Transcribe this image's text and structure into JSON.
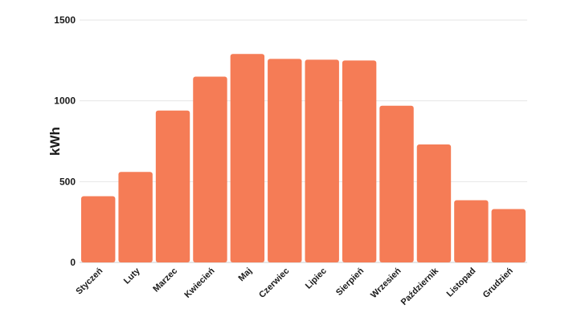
{
  "chart_data": {
    "type": "bar",
    "title": "",
    "xlabel": "",
    "ylabel": "kWh",
    "ylim": [
      0,
      1500
    ],
    "yticks": [
      0,
      500,
      1000,
      1500
    ],
    "grid": true,
    "bar_color": "#F57C56",
    "categories": [
      "Styczeń",
      "Luty",
      "Marzec",
      "Kwiecień",
      "Maj",
      "Czerwiec",
      "Lipiec",
      "Sierpień",
      "Wrzesień",
      "Październik",
      "Listopad",
      "Grudzień"
    ],
    "values": [
      410,
      560,
      940,
      1150,
      1290,
      1260,
      1255,
      1250,
      970,
      730,
      385,
      330
    ]
  }
}
